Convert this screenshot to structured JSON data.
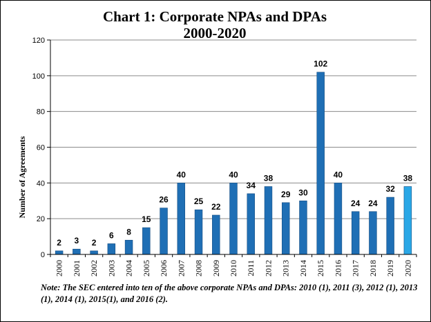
{
  "chart_data": {
    "type": "bar",
    "title_line1": "Chart 1: Corporate NPAs and DPAs",
    "title_line2": "2000-2020",
    "ylabel": "Number of Agreements",
    "xlabel": "",
    "ylim": [
      0,
      120
    ],
    "yticks": [
      "0",
      "20",
      "40",
      "60",
      "80",
      "100",
      "120"
    ],
    "grid": true,
    "categories": [
      "2000",
      "2001",
      "2002",
      "2003",
      "2004",
      "2005",
      "2006",
      "2007",
      "2008",
      "2009",
      "2010",
      "2011",
      "2012",
      "2013",
      "2014",
      "2015",
      "2016",
      "2017",
      "2018",
      "2019",
      "2020"
    ],
    "values": [
      2,
      3,
      2,
      6,
      8,
      15,
      26,
      40,
      25,
      22,
      40,
      34,
      38,
      29,
      30,
      102,
      40,
      24,
      24,
      32,
      38
    ],
    "data_labels": [
      "2",
      "3",
      "2",
      "6",
      "8",
      "15",
      "26",
      "40",
      "25",
      "22",
      "40",
      "34",
      "38",
      "29",
      "30",
      "102",
      "40",
      "24",
      "24",
      "32",
      "38"
    ],
    "bar_color": "#1f6fb5",
    "highlight_color": "#2aa7e6",
    "highlight_index": 20
  },
  "note": "Note: The SEC entered into ten of the above corporate NPAs and DPAs:  2010 (1), 2011 (3), 2012 (1), 2013 (1), 2014 (1),  2015(1), and 2016 (2)."
}
